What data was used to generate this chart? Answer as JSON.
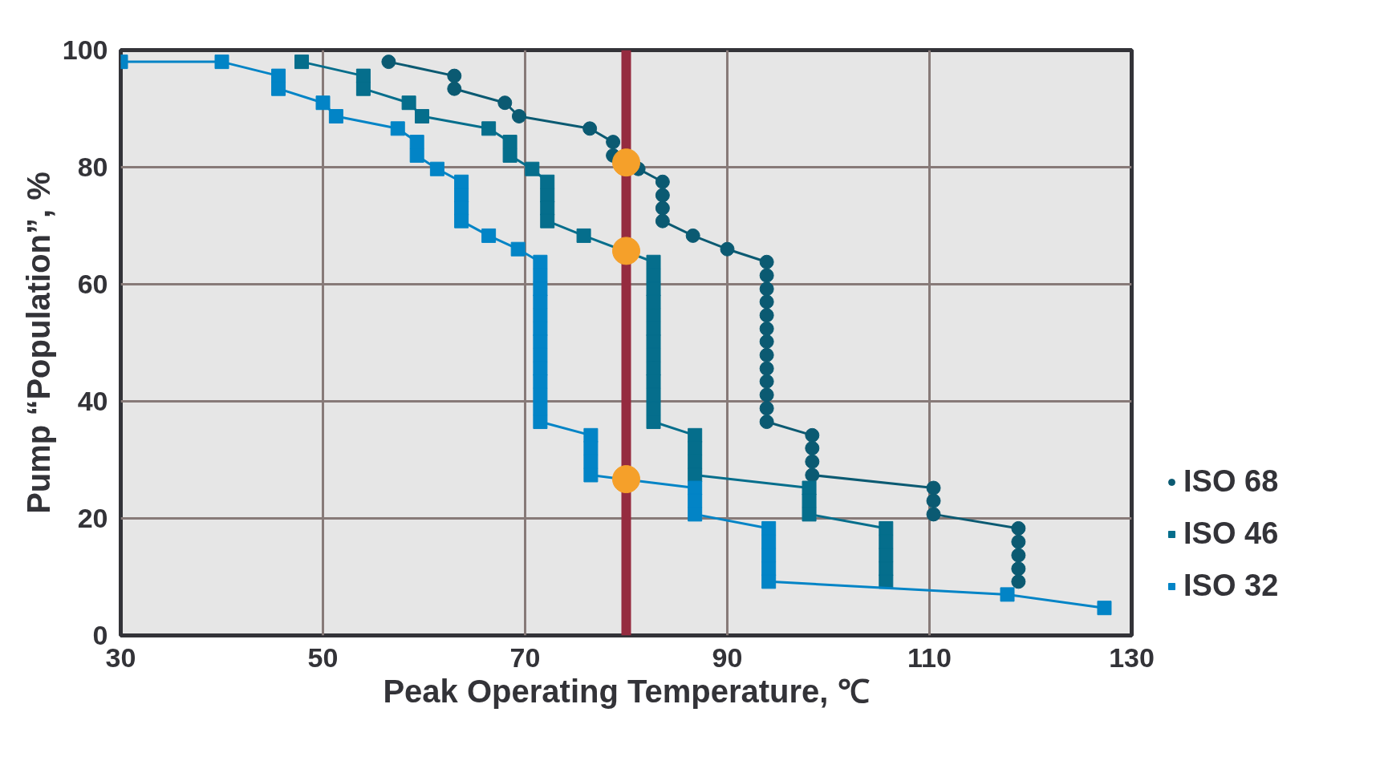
{
  "chart_data": {
    "type": "line",
    "xlabel": "Peak Operating Temperature, ℃",
    "ylabel": "Pump “Population”, %",
    "xlim": [
      30,
      130
    ],
    "xticks": [
      30,
      50,
      70,
      90,
      110,
      130
    ],
    "ylim": [
      0,
      100
    ],
    "yticks": [
      0,
      20,
      40,
      60,
      80,
      100
    ],
    "grid": true,
    "legend": "right",
    "ref_lines": [
      {
        "axis": "x",
        "value": 80,
        "color": "#952b3f"
      }
    ],
    "series": [
      {
        "name": "ISO 68",
        "color": "#0b5a72",
        "marker": "circle",
        "x": [
          56.5,
          63,
          63,
          68,
          69.4,
          76.4,
          78.7,
          78.7,
          81.2,
          83.6,
          83.6,
          83.6,
          83.6,
          86.6,
          90,
          93.9,
          93.9,
          93.9,
          93.9,
          93.9,
          93.9,
          93.9,
          93.9,
          93.9,
          93.9,
          93.9,
          93.9,
          93.9,
          98.4,
          98.4,
          98.4,
          98.4,
          110.4,
          110.4,
          110.4,
          118.8,
          118.8,
          118.8,
          118.8,
          118.8
        ],
        "values": [
          98,
          95.6,
          93.4,
          91,
          88.7,
          86.6,
          84.3,
          82,
          79.7,
          77.5,
          75.2,
          73,
          70.8,
          68.3,
          66,
          63.8,
          61.5,
          59.2,
          57,
          54.7,
          52.4,
          50.2,
          47.9,
          45.6,
          43.4,
          41.1,
          38.8,
          36.5,
          34.2,
          32,
          29.7,
          27.4,
          25.2,
          23,
          20.7,
          18.3,
          16,
          13.7,
          11.4,
          9.2
        ]
      },
      {
        "name": "ISO 46",
        "color": "#056e8c",
        "marker": "square",
        "x": [
          47.9,
          54,
          54,
          58.5,
          59.8,
          66.4,
          68.5,
          68.5,
          70.7,
          72.2,
          72.2,
          72.2,
          72.2,
          75.8,
          82.7,
          82.7,
          82.7,
          82.7,
          82.7,
          82.7,
          82.7,
          82.7,
          82.7,
          82.7,
          82.7,
          82.7,
          82.7,
          86.8,
          86.8,
          86.8,
          86.8,
          98.1,
          98.1,
          98.1,
          105.7,
          105.7,
          105.7,
          105.7,
          105.7
        ],
        "values": [
          98,
          95.6,
          93.4,
          91,
          88.7,
          86.6,
          84.3,
          82,
          79.7,
          77.5,
          75.2,
          73,
          70.8,
          68.3,
          63.8,
          61.5,
          59.2,
          57,
          54.7,
          52.4,
          50.2,
          47.9,
          45.6,
          43.4,
          41.1,
          38.8,
          36.5,
          34.2,
          32,
          29.7,
          27.4,
          25.2,
          23,
          20.7,
          18.3,
          16,
          13.7,
          11.4,
          9.2
        ]
      },
      {
        "name": "ISO 32",
        "color": "#0284c6",
        "marker": "square",
        "x": [
          30,
          40,
          45.6,
          45.6,
          50,
          51.3,
          57.4,
          59.3,
          59.3,
          61.3,
          63.7,
          63.7,
          63.7,
          63.7,
          66.4,
          69.3,
          71.5,
          71.5,
          71.5,
          71.5,
          71.5,
          71.5,
          71.5,
          71.5,
          71.5,
          71.5,
          71.5,
          71.5,
          71.5,
          76.5,
          76.5,
          76.5,
          76.5,
          86.8,
          86.8,
          86.8,
          94.1,
          94.1,
          94.1,
          94.1,
          94.1,
          117.7,
          127.3
        ],
        "values": [
          98,
          98,
          95.6,
          93.4,
          91,
          88.7,
          86.6,
          84.3,
          82,
          79.7,
          77.5,
          75.2,
          73,
          70.8,
          68.3,
          66,
          63.8,
          61.5,
          59.2,
          57,
          54.7,
          52.4,
          50.2,
          47.9,
          45.6,
          43.4,
          41.1,
          38.8,
          36.5,
          34.2,
          32,
          29.7,
          27.4,
          25.2,
          23,
          20.7,
          18.3,
          16,
          13.7,
          11.4,
          9.2,
          7,
          4.7
        ]
      },
      {
        "type": "scatter",
        "color": "#f5a02a",
        "marker": "circle",
        "x": [
          80,
          80,
          80
        ],
        "values": [
          80.8,
          65.7,
          26.7
        ]
      }
    ]
  }
}
